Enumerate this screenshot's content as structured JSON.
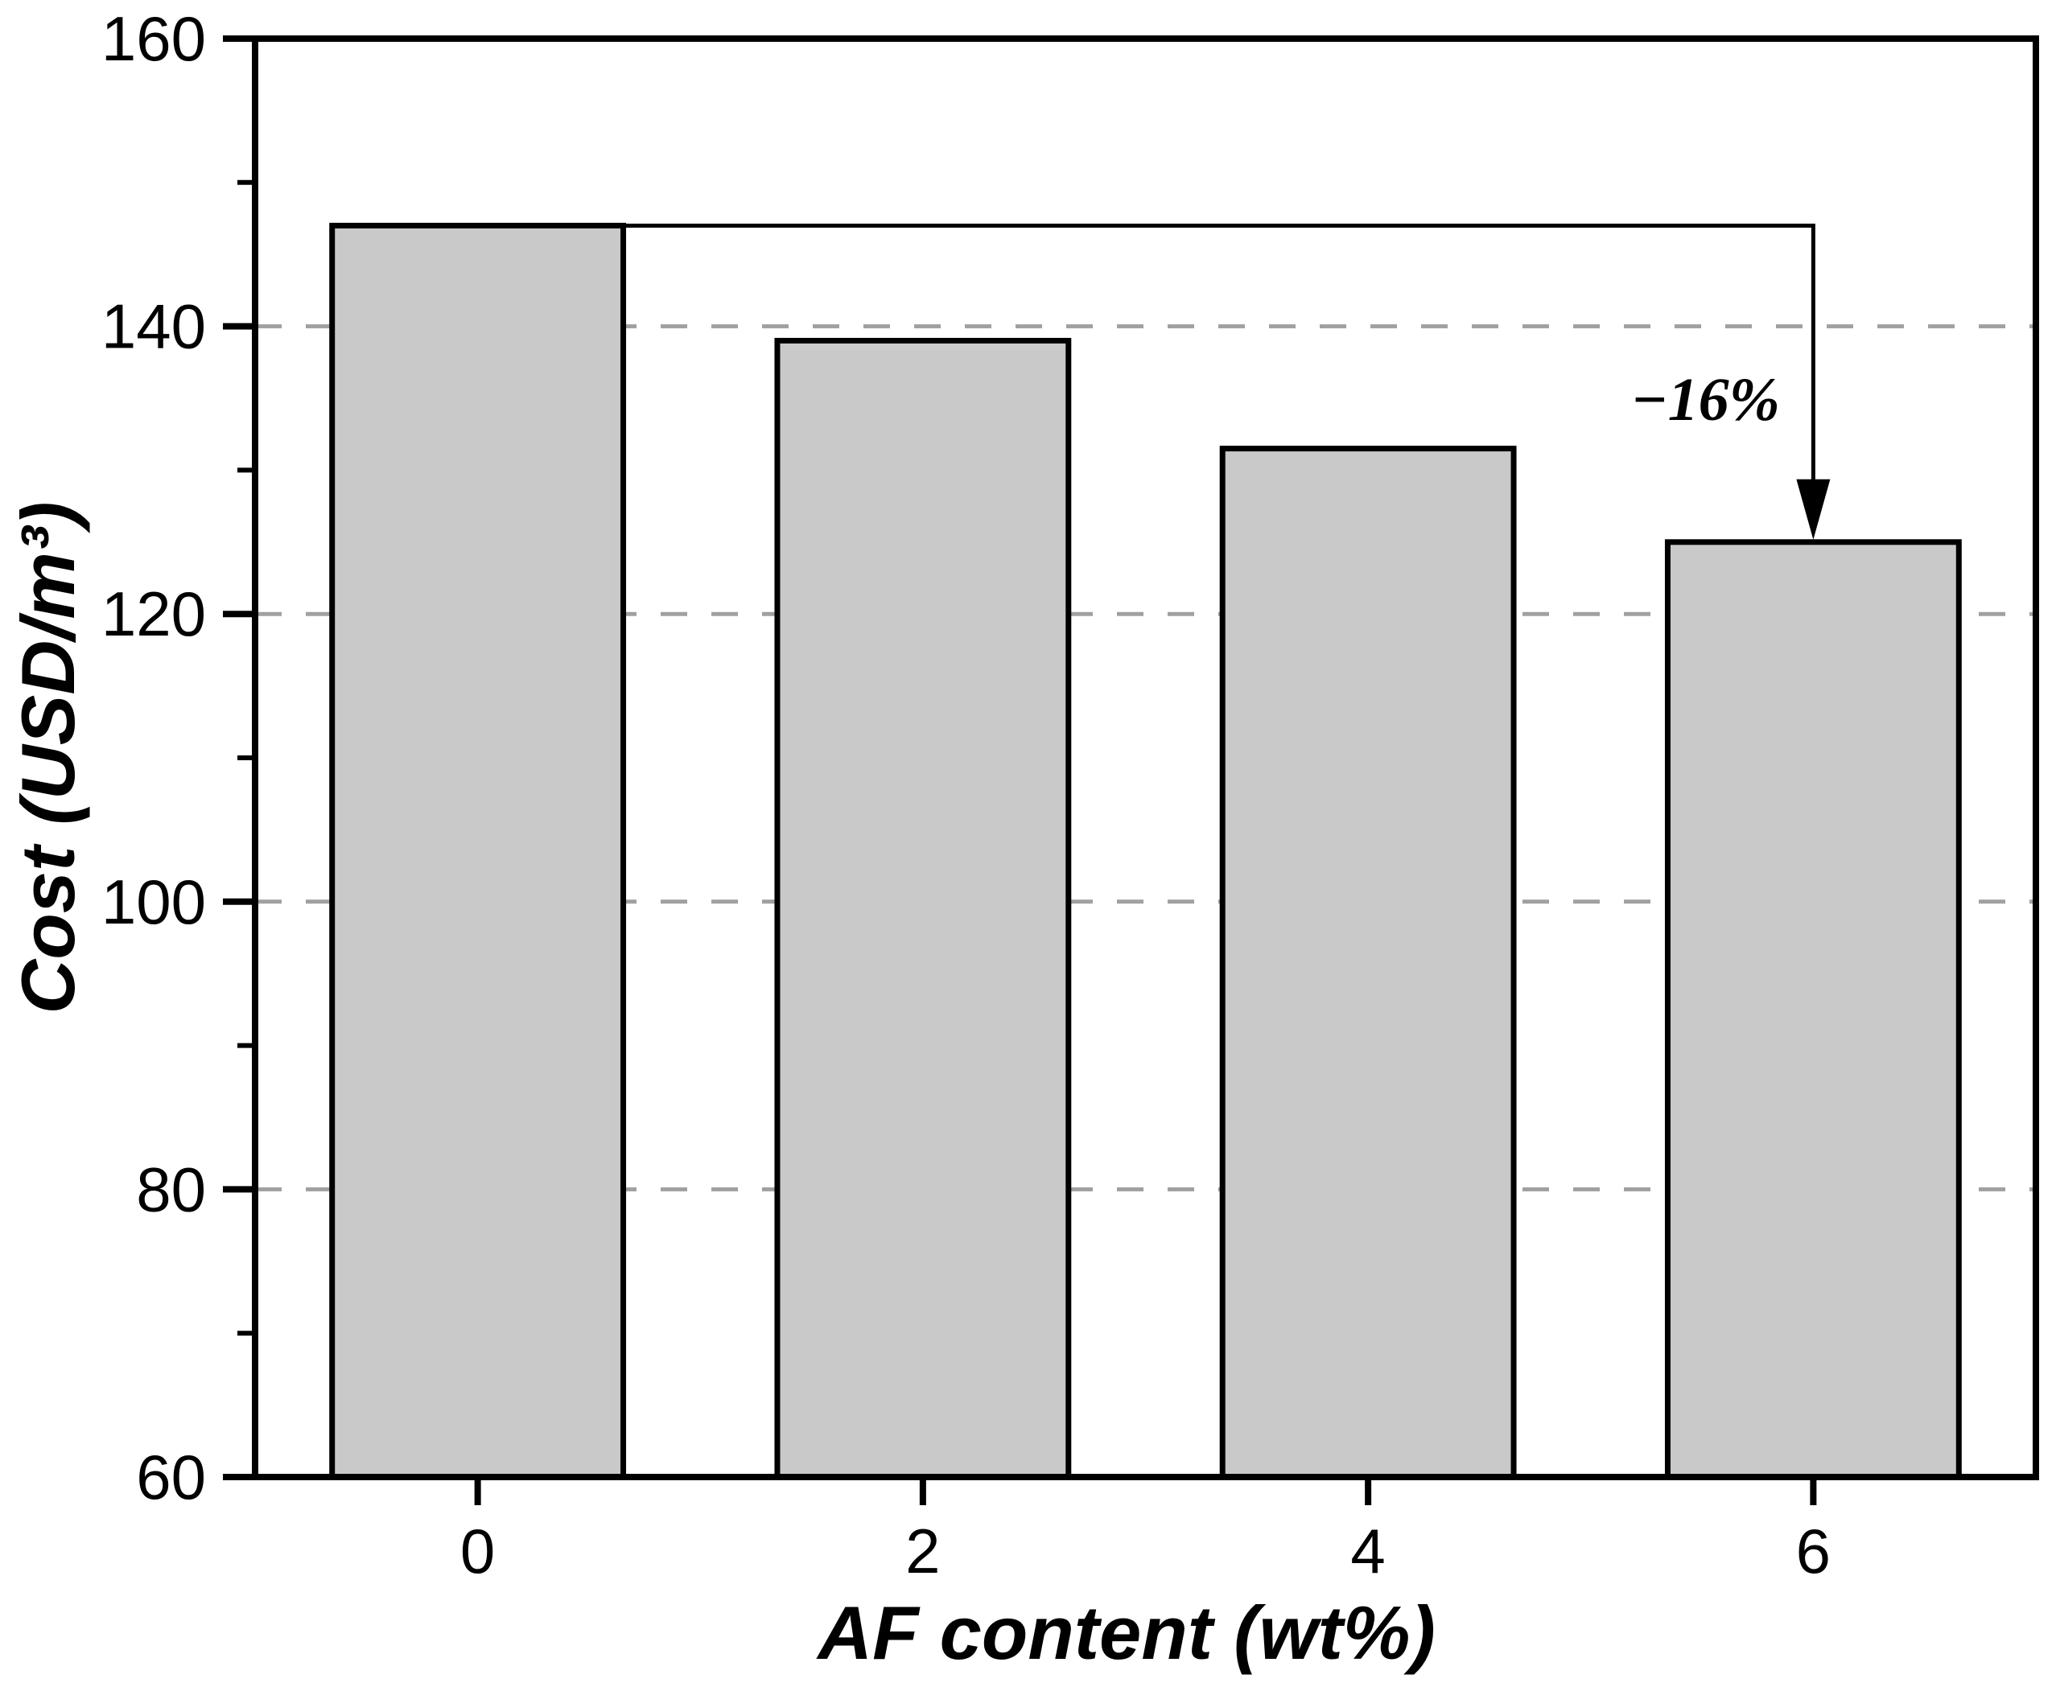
{
  "chart_data": {
    "type": "bar",
    "title": "",
    "categories": [
      "0",
      "2",
      "4",
      "6"
    ],
    "values": [
      147,
      139,
      131.5,
      125
    ],
    "xlabel": "AF content (wt%)",
    "ylabel": "Cost (USD/m³)",
    "ylim": [
      60,
      160
    ],
    "ytick_step": 20,
    "yticks": [
      60,
      80,
      100,
      120,
      140,
      160
    ],
    "yminor_step": 10,
    "grid": "horizontal dashed gridlines at 80, 100, 120, 140",
    "legend_position": "none",
    "annotation": {
      "label": "−16%",
      "from_category": "0",
      "to_category": "6",
      "shape": "horizontal line from top of first bar with arrow down to top of last bar"
    },
    "colors": {
      "bar_fill": "#c9c9c9",
      "bar_edge": "#000000",
      "axis": "#000000",
      "gridline": "#a0a0a0",
      "background": "#ffffff"
    }
  }
}
